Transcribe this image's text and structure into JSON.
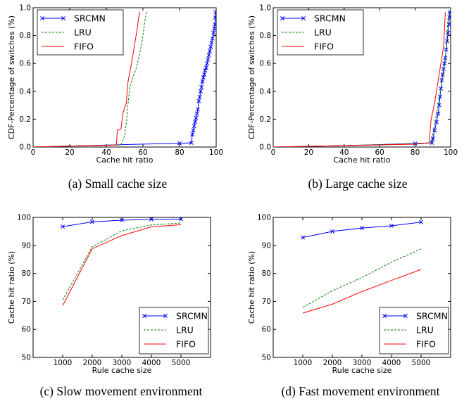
{
  "colors": {
    "SRCMN": "#0000ff",
    "LRU": "#008000",
    "FIFO": "#ff0000"
  },
  "chart_data": [
    {
      "id": "a",
      "type": "line",
      "caption": "(a) Small cache size",
      "xlabel": "Cache hit ratio",
      "ylabel": "CDF-Percentage of switches (%)",
      "xlim": [
        0,
        100
      ],
      "ylim": [
        0,
        1.0
      ],
      "xticks": [
        0,
        20,
        40,
        60,
        80,
        100
      ],
      "yticks": [
        0.0,
        0.2,
        0.4,
        0.6,
        0.8,
        1.0
      ],
      "legend": "top-left",
      "series": [
        {
          "name": "SRCMN",
          "style": "solid-x",
          "x": [
            0,
            20,
            40,
            60,
            80,
            86.5,
            87,
            87.5,
            88,
            88.5,
            89,
            89.5,
            90,
            90.5,
            91,
            91.5,
            92,
            92.5,
            93,
            93.5,
            94,
            94.5,
            95,
            95.5,
            96,
            96.5,
            97,
            97.5,
            98,
            98.5,
            99,
            99.3,
            99.5,
            99.7
          ],
          "y": [
            0.0,
            0.007,
            0.014,
            0.021,
            0.027,
            0.03,
            0.09,
            0.12,
            0.15,
            0.18,
            0.21,
            0.24,
            0.27,
            0.33,
            0.36,
            0.4,
            0.43,
            0.47,
            0.5,
            0.52,
            0.55,
            0.57,
            0.6,
            0.63,
            0.66,
            0.69,
            0.72,
            0.75,
            0.78,
            0.82,
            0.85,
            0.88,
            0.93,
            0.97
          ]
        },
        {
          "name": "LRU",
          "style": "dashed",
          "x": [
            0,
            20,
            40,
            48,
            50,
            51,
            52,
            53,
            54,
            55,
            56,
            57,
            58,
            59,
            60,
            61,
            62
          ],
          "y": [
            0.0,
            0.007,
            0.012,
            0.015,
            0.08,
            0.18,
            0.33,
            0.44,
            0.48,
            0.52,
            0.55,
            0.6,
            0.66,
            0.72,
            0.8,
            0.9,
            0.97
          ]
        },
        {
          "name": "FIFO",
          "style": "solid",
          "x": [
            0,
            20,
            40,
            45.5,
            46,
            48,
            49,
            50,
            51,
            51.5,
            52,
            53,
            54,
            55,
            56,
            57,
            57.5,
            58,
            58.3
          ],
          "y": [
            0.0,
            0.007,
            0.012,
            0.015,
            0.12,
            0.13,
            0.24,
            0.28,
            0.32,
            0.43,
            0.48,
            0.55,
            0.62,
            0.7,
            0.78,
            0.86,
            0.92,
            0.95,
            0.97
          ]
        }
      ]
    },
    {
      "id": "b",
      "type": "line",
      "caption": "(b) Large cache size",
      "xlabel": "Cache hit ratio",
      "ylabel": "CDF-Percentage of switches (%)",
      "xlim": [
        0,
        100
      ],
      "ylim": [
        0,
        1.0
      ],
      "xticks": [
        0,
        20,
        40,
        60,
        80,
        100
      ],
      "yticks": [
        0.0,
        0.2,
        0.4,
        0.6,
        0.8,
        1.0
      ],
      "legend": "top-left",
      "series": [
        {
          "name": "SRCMN",
          "style": "solid-x",
          "x": [
            0,
            40,
            80,
            89.5,
            90,
            91,
            92,
            93,
            93.5,
            94,
            94.5,
            95,
            95.5,
            96,
            96.5,
            97,
            97.5,
            98,
            98.5,
            99,
            99.3,
            99.5
          ],
          "y": [
            0.0,
            0.01,
            0.025,
            0.03,
            0.06,
            0.12,
            0.18,
            0.24,
            0.3,
            0.36,
            0.42,
            0.48,
            0.52,
            0.56,
            0.6,
            0.64,
            0.7,
            0.76,
            0.82,
            0.88,
            0.93,
            0.97
          ]
        },
        {
          "name": "LRU",
          "style": "dashed",
          "x": [
            0,
            40,
            80,
            89,
            90,
            91,
            92,
            93,
            94,
            95,
            96,
            97,
            97.5,
            98,
            98.5,
            99
          ],
          "y": [
            0.0,
            0.01,
            0.025,
            0.03,
            0.1,
            0.16,
            0.24,
            0.3,
            0.38,
            0.46,
            0.54,
            0.62,
            0.72,
            0.82,
            0.9,
            0.97
          ]
        },
        {
          "name": "FIFO",
          "style": "solid",
          "x": [
            0,
            40,
            80,
            88,
            88.5,
            89,
            90,
            91,
            92,
            93,
            94,
            95,
            96,
            96.5,
            97
          ],
          "y": [
            0.0,
            0.01,
            0.02,
            0.03,
            0.13,
            0.2,
            0.26,
            0.32,
            0.4,
            0.48,
            0.56,
            0.64,
            0.72,
            0.84,
            0.97
          ]
        }
      ]
    },
    {
      "id": "c",
      "type": "line",
      "caption": "(c) Slow movement environment",
      "xlabel": "Rule cache size",
      "ylabel": "Cache hit ratio (%)",
      "xlim": [
        0,
        6000
      ],
      "ylim": [
        50,
        100
      ],
      "xticks": [
        1000,
        2000,
        3000,
        4000,
        5000
      ],
      "yticks": [
        50,
        60,
        70,
        80,
        90,
        100
      ],
      "legend": "bottom-right",
      "series": [
        {
          "name": "SRCMN",
          "style": "solid-x",
          "x": [
            1000,
            2000,
            3000,
            4000,
            5000
          ],
          "y": [
            96.7,
            98.4,
            99.0,
            99.3,
            99.4
          ]
        },
        {
          "name": "LRU",
          "style": "dashed",
          "x": [
            1000,
            2000,
            3000,
            4000,
            5000
          ],
          "y": [
            70.5,
            89.5,
            95.2,
            97.3,
            98.0
          ]
        },
        {
          "name": "FIFO",
          "style": "solid",
          "x": [
            1000,
            2000,
            3000,
            4000,
            5000
          ],
          "y": [
            68.5,
            88.8,
            93.5,
            96.6,
            97.4
          ]
        }
      ]
    },
    {
      "id": "d",
      "type": "line",
      "caption": "(d) Fast movement environment",
      "xlabel": "Rule cache size",
      "ylabel": "Cache hit ratio (%)",
      "xlim": [
        0,
        6000
      ],
      "ylim": [
        50,
        100
      ],
      "xticks": [
        1000,
        2000,
        3000,
        4000,
        5000
      ],
      "yticks": [
        50,
        60,
        70,
        80,
        90,
        100
      ],
      "legend": "bottom-right",
      "series": [
        {
          "name": "SRCMN",
          "style": "solid-x",
          "x": [
            1000,
            2000,
            3000,
            4000,
            5000
          ],
          "y": [
            92.8,
            95.0,
            96.2,
            97.0,
            98.3
          ]
        },
        {
          "name": "LRU",
          "style": "dashed",
          "x": [
            1000,
            2000,
            3000,
            4000,
            5000
          ],
          "y": [
            67.8,
            73.8,
            78.5,
            84.0,
            88.7
          ]
        },
        {
          "name": "FIFO",
          "style": "solid",
          "x": [
            1000,
            2000,
            3000,
            4000,
            5000
          ],
          "y": [
            65.8,
            69.0,
            73.5,
            77.5,
            81.4
          ]
        }
      ]
    }
  ]
}
